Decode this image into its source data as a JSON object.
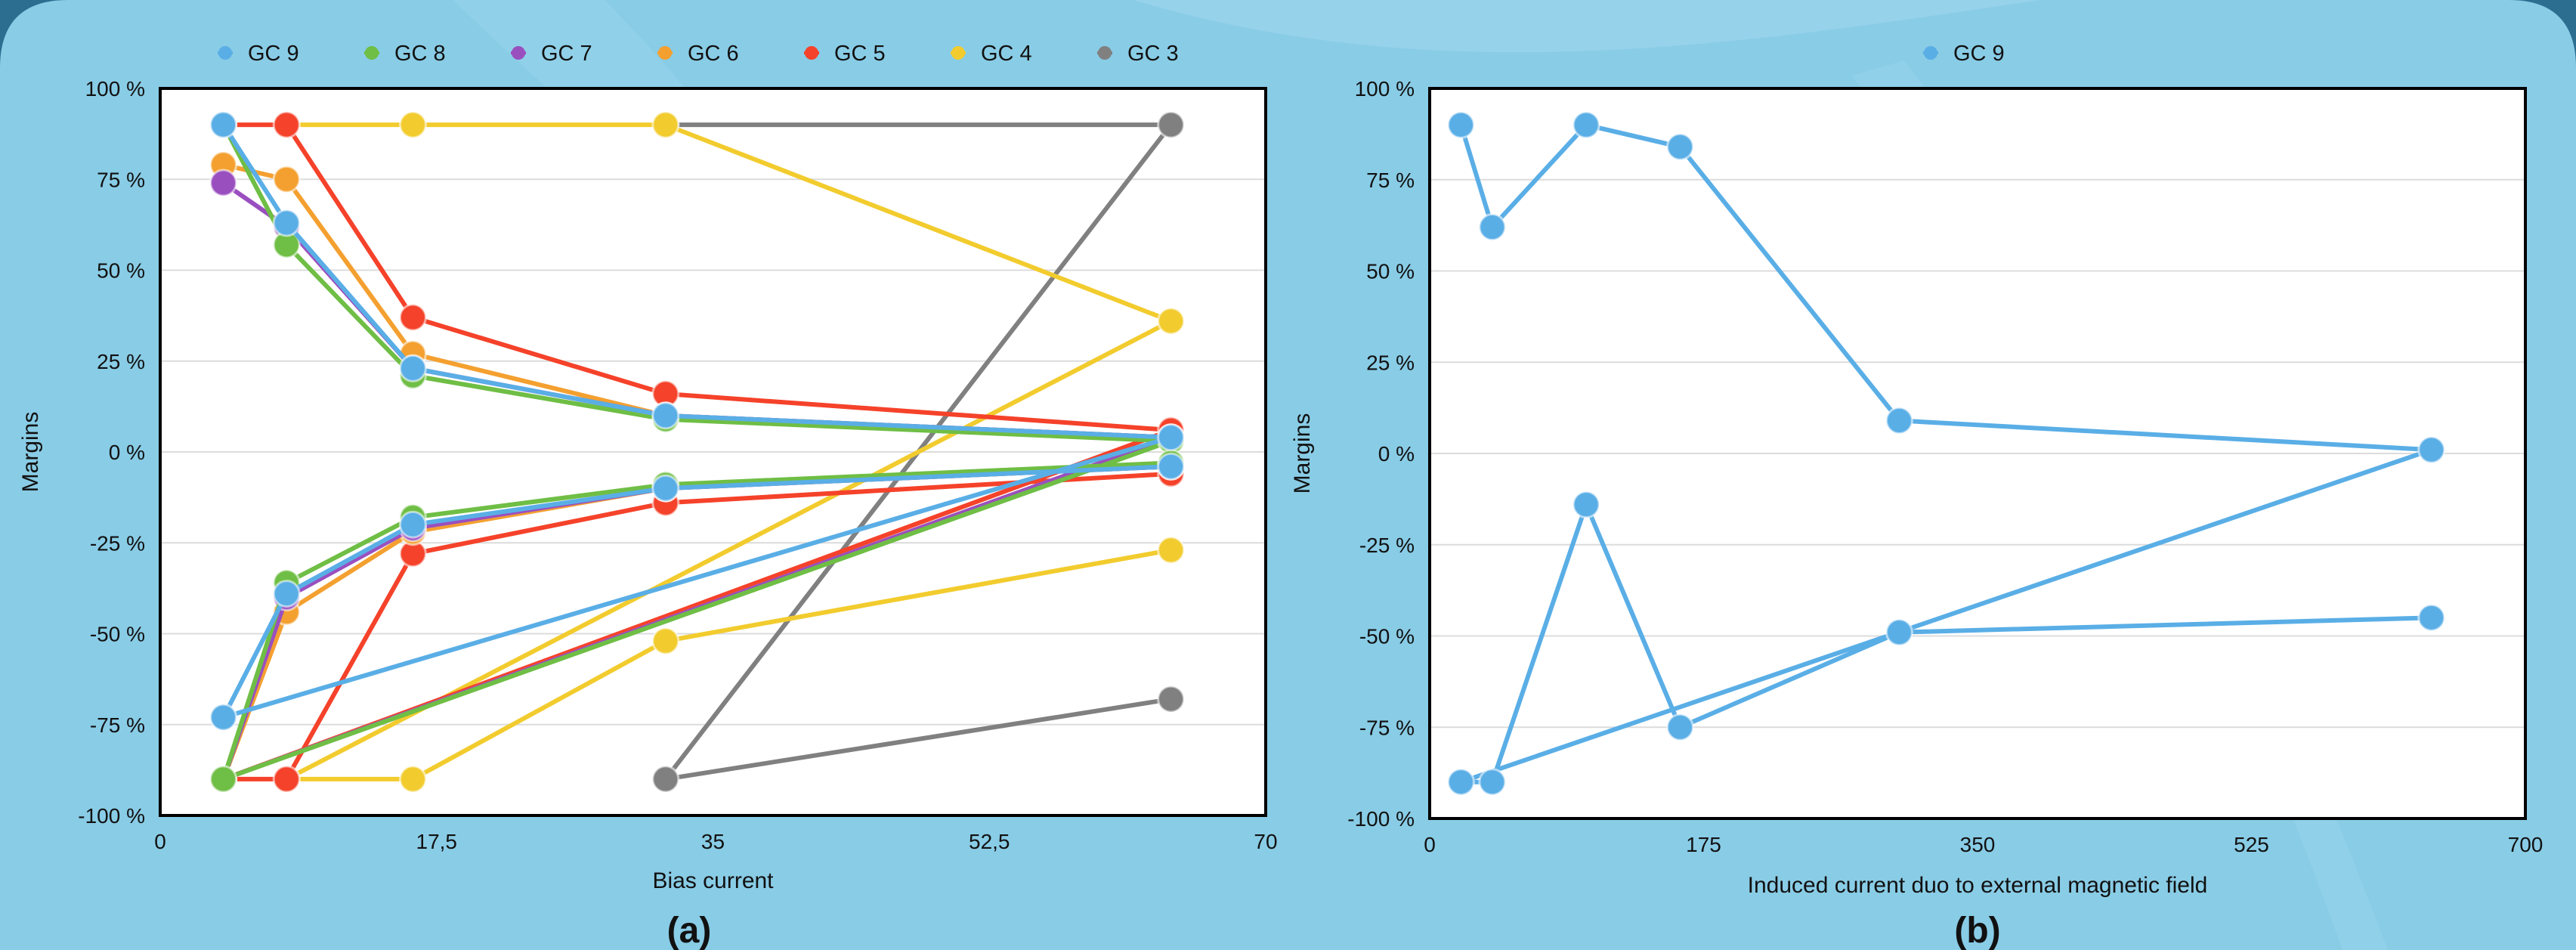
{
  "chart_data": [
    {
      "type": "line",
      "panel_label": "(a)",
      "xlabel": "Bias current",
      "ylabel": "Margins",
      "xlim": [
        0,
        70
      ],
      "ylim": [
        -100,
        100
      ],
      "x_ticks": [
        "0",
        "17,5",
        "35",
        "52,5",
        "70"
      ],
      "y_ticks": [
        "100 %",
        "75 %",
        "50 %",
        "25 %",
        "0 %",
        "-25 %",
        "-50 %",
        "-75 %",
        "-100 %"
      ],
      "grid": true,
      "legend": "top",
      "series": [
        {
          "name": "GC 9",
          "color": "#5aaee6",
          "points": [
            [
              4,
              90
            ],
            [
              8,
              63
            ],
            [
              16,
              23
            ],
            [
              32,
              10
            ],
            [
              64,
              4
            ],
            [
              4,
              -73
            ],
            [
              8,
              -39
            ],
            [
              16,
              -20
            ],
            [
              32,
              -10
            ],
            [
              64,
              -4
            ]
          ]
        },
        {
          "name": "GC 8",
          "color": "#6fbe45",
          "points": [
            [
              4,
              90
            ],
            [
              8,
              57
            ],
            [
              16,
              21
            ],
            [
              32,
              9
            ],
            [
              64,
              3
            ],
            [
              4,
              -90
            ],
            [
              8,
              -36
            ],
            [
              16,
              -18
            ],
            [
              32,
              -9
            ],
            [
              64,
              -3
            ]
          ]
        },
        {
          "name": "GC 7",
          "color": "#9a4fbf",
          "points": [
            [
              4,
              74
            ],
            [
              8,
              62
            ],
            [
              16,
              23
            ],
            [
              32,
              10
            ],
            [
              64,
              4
            ],
            [
              4,
              -90
            ],
            [
              8,
              -40
            ],
            [
              16,
              -21
            ],
            [
              32,
              -10
            ],
            [
              64,
              -4
            ]
          ]
        },
        {
          "name": "GC 6",
          "color": "#f4a030",
          "points": [
            [
              4,
              79
            ],
            [
              8,
              75
            ],
            [
              16,
              27
            ],
            [
              32,
              10
            ],
            [
              64,
              4
            ],
            [
              4,
              -90
            ],
            [
              8,
              -44
            ],
            [
              16,
              -22
            ],
            [
              32,
              -10
            ],
            [
              64,
              -4
            ]
          ]
        },
        {
          "name": "GC 5",
          "color": "#f5422a",
          "points": [
            [
              4,
              90
            ],
            [
              8,
              90
            ],
            [
              16,
              37
            ],
            [
              32,
              16
            ],
            [
              64,
              6
            ],
            [
              4,
              -90
            ],
            [
              8,
              -90
            ],
            [
              16,
              -28
            ],
            [
              32,
              -14
            ],
            [
              64,
              -6
            ]
          ]
        },
        {
          "name": "GC 4",
          "color": "#f2cc2e",
          "points": [
            [
              8,
              90
            ],
            [
              16,
              90
            ],
            [
              32,
              90
            ],
            [
              64,
              36
            ],
            [
              8,
              -90
            ],
            [
              16,
              -90
            ],
            [
              32,
              -52
            ],
            [
              64,
              -27
            ]
          ]
        },
        {
          "name": "GC 3",
          "color": "#808080",
          "points": [
            [
              32,
              90
            ],
            [
              64,
              90
            ],
            [
              32,
              -90
            ],
            [
              64,
              -68
            ]
          ]
        }
      ]
    },
    {
      "type": "line",
      "panel_label": "(b)",
      "xlabel": "Induced current duo to external magnetic field",
      "ylabel": "Margins",
      "xlim": [
        0,
        700
      ],
      "ylim": [
        -100,
        100
      ],
      "x_ticks": [
        "0",
        "175",
        "350",
        "525",
        "700"
      ],
      "y_ticks": [
        "100 %",
        "75 %",
        "50 %",
        "25 %",
        "0 %",
        "-25 %",
        "-50 %",
        "-75 %",
        "-100 %"
      ],
      "grid": true,
      "legend": "top",
      "series": [
        {
          "name": "GC 9",
          "color": "#5aaee6",
          "points": [
            [
              20,
              90
            ],
            [
              40,
              62
            ],
            [
              100,
              90
            ],
            [
              160,
              84
            ],
            [
              300,
              9
            ],
            [
              640,
              1
            ],
            [
              20,
              -90
            ],
            [
              40,
              -90
            ],
            [
              100,
              -14
            ],
            [
              160,
              -75
            ],
            [
              300,
              -49
            ],
            [
              640,
              -45
            ]
          ]
        }
      ]
    }
  ]
}
